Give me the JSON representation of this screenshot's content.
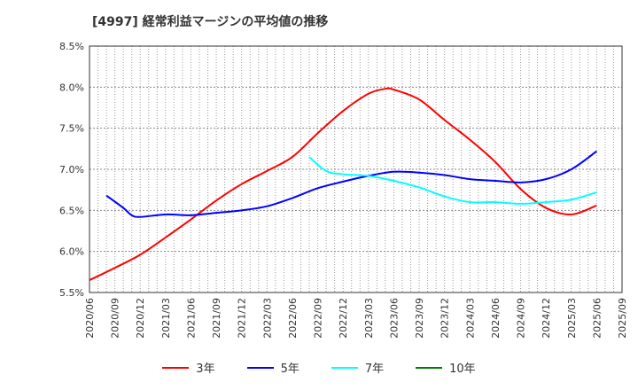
{
  "chart_data": {
    "type": "line",
    "title": "[4997]  経常利益マージンの平均値の推移",
    "xlabel": "",
    "ylabel": "",
    "ylim": [
      5.5,
      8.5
    ],
    "yticks": [
      "5.5%",
      "6.0%",
      "6.5%",
      "7.0%",
      "7.5%",
      "8.0%",
      "8.5%"
    ],
    "yvalues": [
      5.5,
      6.0,
      6.5,
      7.0,
      7.5,
      8.0,
      8.5
    ],
    "xticks": [
      "2020/06",
      "2020/09",
      "2020/12",
      "2021/03",
      "2021/06",
      "2021/09",
      "2021/12",
      "2022/03",
      "2022/06",
      "2022/09",
      "2022/12",
      "2023/03",
      "2023/06",
      "2023/09",
      "2023/12",
      "2024/03",
      "2024/06",
      "2024/09",
      "2024/12",
      "2025/03",
      "2025/06",
      "2025/09"
    ],
    "grid": true,
    "legend_position": "bottom",
    "series": [
      {
        "name": "3年",
        "color": "#ff0000",
        "x": [
          "2020/06",
          "2020/09",
          "2020/12",
          "2021/03",
          "2021/06",
          "2021/09",
          "2021/12",
          "2022/03",
          "2022/06",
          "2022/09",
          "2022/12",
          "2023/03",
          "2023/05",
          "2023/06",
          "2023/09",
          "2023/12",
          "2024/03",
          "2024/06",
          "2024/09",
          "2024/12",
          "2025/03",
          "2025/06"
        ],
        "values": [
          5.65,
          5.8,
          5.96,
          6.17,
          6.39,
          6.62,
          6.82,
          6.98,
          7.15,
          7.44,
          7.71,
          7.92,
          7.98,
          7.97,
          7.85,
          7.6,
          7.36,
          7.09,
          6.76,
          6.53,
          6.45,
          6.56
        ]
      },
      {
        "name": "5年",
        "color": "#0000ff",
        "x": [
          "2020/08",
          "2020/10",
          "2020/11",
          "2020/12",
          "2021/03",
          "2021/06",
          "2021/09",
          "2021/12",
          "2022/03",
          "2022/06",
          "2022/09",
          "2022/12",
          "2023/03",
          "2023/06",
          "2023/09",
          "2023/12",
          "2024/03",
          "2024/06",
          "2024/09",
          "2024/12",
          "2025/03",
          "2025/06"
        ],
        "values": [
          6.68,
          6.53,
          6.44,
          6.42,
          6.45,
          6.44,
          6.47,
          6.5,
          6.55,
          6.65,
          6.77,
          6.85,
          6.92,
          6.97,
          6.96,
          6.93,
          6.88,
          6.86,
          6.84,
          6.88,
          7.0,
          7.22
        ]
      },
      {
        "name": "7年",
        "color": "#00ffff",
        "x": [
          "2022/08",
          "2022/10",
          "2022/12",
          "2023/03",
          "2023/06",
          "2023/09",
          "2023/12",
          "2024/03",
          "2024/06",
          "2024/09",
          "2024/12",
          "2025/03",
          "2025/06"
        ],
        "values": [
          7.15,
          6.98,
          6.94,
          6.92,
          6.86,
          6.78,
          6.67,
          6.6,
          6.6,
          6.58,
          6.6,
          6.63,
          6.72
        ]
      },
      {
        "name": "10年",
        "color": "#008000",
        "x": [],
        "values": []
      }
    ]
  }
}
